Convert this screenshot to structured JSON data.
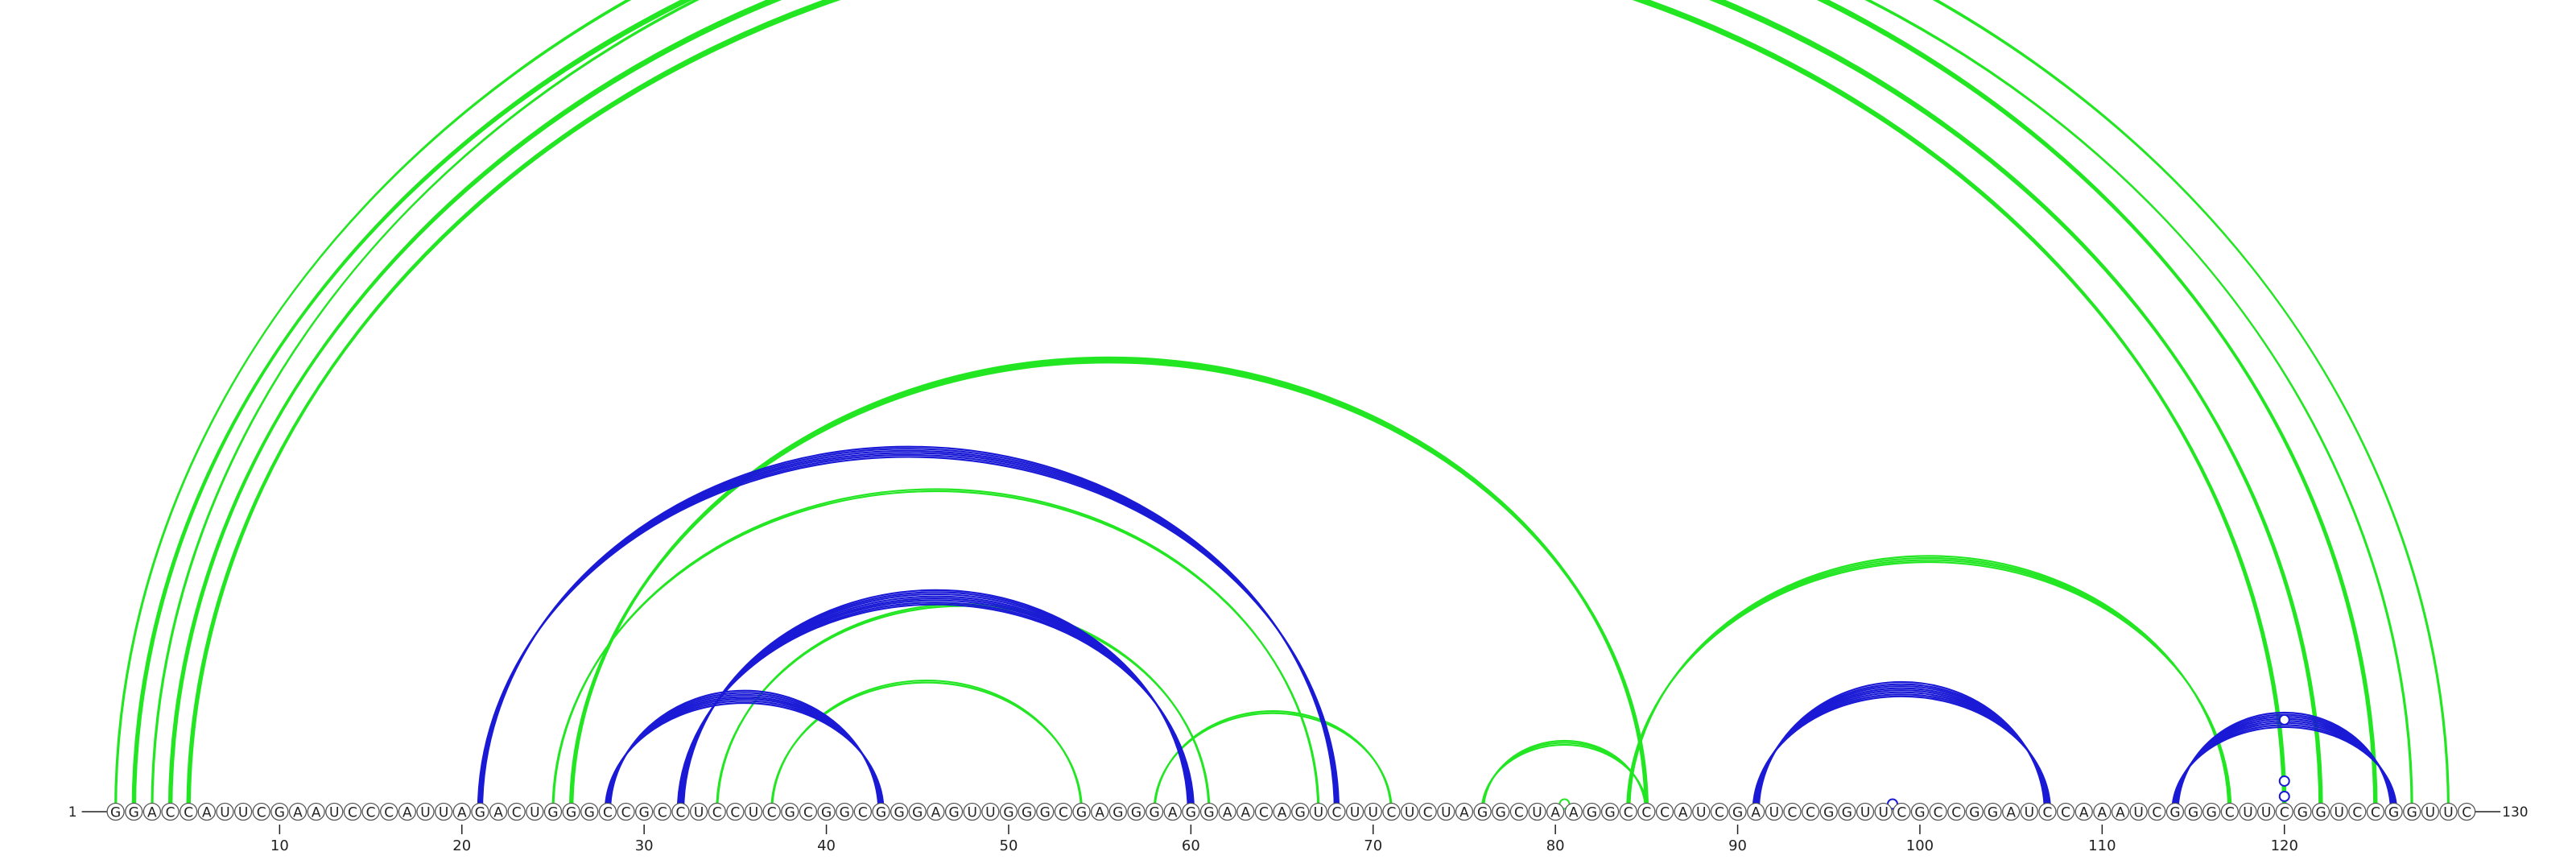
{
  "diagram": {
    "sequence": "GGACCAUUCGAAUCCCAUUAGACUGGGCCGCCUCCUCGCGGCGGGAGUUGGGCGAGGGAGGAACAGUCUUCUCUAGGCUAAGGCCCAUCGAUCCGGUUCGCCGGAUCCAAAUCGGGCUUCGGUCCGGUUC",
    "start_label": "1",
    "end_label": "130",
    "axis_ticks": [
      10,
      20,
      30,
      40,
      50,
      60,
      70,
      80,
      90,
      100,
      110,
      120
    ],
    "colors": {
      "green": "#22e622",
      "blue": "#1a1ad6",
      "text": "#222222",
      "nucleotide_fill": "#ffffff",
      "nucleotide_stroke": "#555555"
    },
    "arc_groups": [
      {
        "color": "green",
        "i": 1,
        "j": 129,
        "count": 2,
        "width": "thin"
      },
      {
        "color": "green",
        "i": 2,
        "j": 125,
        "count": 3,
        "width": "thick"
      },
      {
        "color": "green",
        "i": 3,
        "j": 127,
        "count": 2,
        "width": "thin"
      },
      {
        "color": "green",
        "i": 4,
        "j": 122,
        "count": 3,
        "width": "thick"
      },
      {
        "color": "green",
        "i": 5,
        "j": 120,
        "count": 3,
        "width": "thick"
      },
      {
        "color": "green",
        "i": 26,
        "j": 85,
        "count": 3,
        "width": "thick"
      },
      {
        "color": "green",
        "i": 25,
        "j": 67,
        "count": 2,
        "width": "thin"
      },
      {
        "color": "green",
        "i": 34,
        "j": 61,
        "count": 2,
        "width": "thin"
      },
      {
        "color": "green",
        "i": 37,
        "j": 54,
        "count": 2,
        "width": "thin"
      },
      {
        "color": "green",
        "i": 58,
        "j": 71,
        "count": 2,
        "width": "thin"
      },
      {
        "color": "green",
        "i": 76,
        "j": 85,
        "count": 3,
        "width": "thin"
      },
      {
        "color": "green",
        "i": 84,
        "j": 117,
        "count": 4,
        "width": "thin"
      },
      {
        "color": "blue",
        "i": 21,
        "j": 68,
        "count": 6,
        "width": "thin"
      },
      {
        "color": "blue",
        "i": 28,
        "j": 43,
        "count": 7,
        "width": "thin"
      },
      {
        "color": "blue",
        "i": 32,
        "j": 60,
        "count": 8,
        "width": "thin"
      },
      {
        "color": "blue",
        "i": 91,
        "j": 107,
        "count": 8,
        "width": "thin"
      },
      {
        "color": "blue",
        "i": 114,
        "j": 126,
        "count": 8,
        "width": "thin"
      }
    ],
    "markers": [
      {
        "i": 1,
        "j": 129,
        "color": "green"
      },
      {
        "i": 80,
        "j": 81,
        "color": "green"
      },
      {
        "i": 98,
        "j": 99,
        "color": "blue"
      },
      {
        "i": 114,
        "j": 126,
        "color": "blue"
      },
      {
        "i": 118,
        "j": 122,
        "color": "blue"
      },
      {
        "i": 119,
        "j": 121,
        "color": "blue"
      }
    ]
  }
}
